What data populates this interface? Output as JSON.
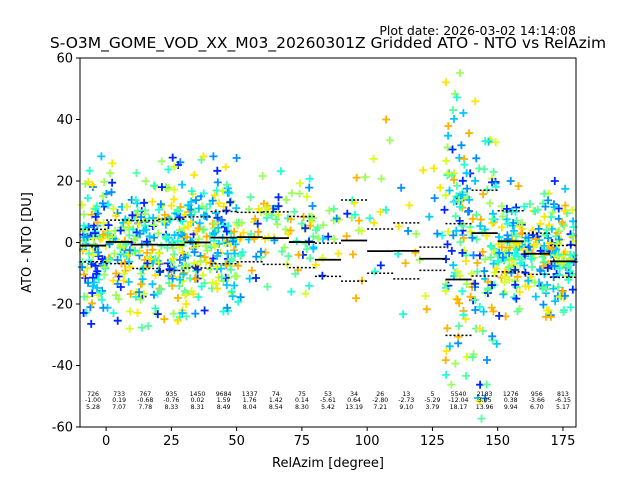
{
  "plot_date": "Plot date: 2026-03-02 14:14:08",
  "colors": {
    "palette": [
      "#0027ff",
      "#0090ff",
      "#00c8ff",
      "#1fffd6",
      "#55ff9f",
      "#9bff5a",
      "#d5ff21",
      "#ffe600",
      "#ffb300"
    ],
    "mean_line": "#000000",
    "std_line": "#000000"
  },
  "chart_data": {
    "type": "scatter",
    "title": "S-O3M_GOME_VOD_XX_M03_20260301Z Gridded ATO - NTO vs RelAzim",
    "xlabel": "RelAzim [degree]",
    "ylabel": "ATO - NTO [DU]",
    "xlim": [
      -10,
      180
    ],
    "ylim": [
      -60,
      60
    ],
    "xticks": [
      0,
      25,
      50,
      75,
      100,
      125,
      150,
      175
    ],
    "yticks": [
      -60,
      -40,
      -20,
      0,
      20,
      40,
      60
    ],
    "grid": false,
    "marker": "+",
    "point_clusters": [
      {
        "xmin": -10,
        "xmax": 52,
        "ymin": -28,
        "ymax": 28,
        "density": "high"
      },
      {
        "xmin": 52,
        "xmax": 80,
        "ymin": -20,
        "ymax": 26,
        "density": "medium"
      },
      {
        "xmin": 80,
        "xmax": 130,
        "ymin": -28,
        "ymax": 40,
        "density": "low"
      },
      {
        "xmin": 130,
        "xmax": 150,
        "ymin": -60,
        "ymax": 57,
        "density": "high"
      },
      {
        "xmin": 150,
        "xmax": 180,
        "ymin": -25,
        "ymax": 20,
        "density": "high"
      }
    ],
    "bins": [
      {
        "x_from": -10,
        "x_to": 0,
        "label_x": -5,
        "count": "726",
        "mean": "-1.00",
        "std": "5.28"
      },
      {
        "x_from": 0,
        "x_to": 10,
        "label_x": 5,
        "count": "733",
        "mean": "0.19",
        "std": "7.07"
      },
      {
        "x_from": 10,
        "x_to": 20,
        "label_x": 15,
        "count": "767",
        "mean": "-0.68",
        "std": "7.78"
      },
      {
        "x_from": 20,
        "x_to": 30,
        "label_x": 25,
        "count": "935",
        "mean": "-0.76",
        "std": "8.33"
      },
      {
        "x_from": 30,
        "x_to": 40,
        "label_x": 35,
        "count": "1450",
        "mean": "0.02",
        "std": "8.31"
      },
      {
        "x_from": 40,
        "x_to": 50,
        "label_x": 45,
        "count": "9684",
        "mean": "1.59",
        "std": "8.49"
      },
      {
        "x_from": 50,
        "x_to": 60,
        "label_x": 55,
        "count": "1337",
        "mean": "1.76",
        "std": "8.04"
      },
      {
        "x_from": 60,
        "x_to": 70,
        "label_x": 65,
        "count": "74",
        "mean": "1.42",
        "std": "8.54"
      },
      {
        "x_from": 70,
        "x_to": 80,
        "label_x": 75,
        "count": "75",
        "mean": "0.14",
        "std": "8.30"
      },
      {
        "x_from": 80,
        "x_to": 90,
        "label_x": 85,
        "count": "53",
        "mean": "-5.61",
        "std": "5.42"
      },
      {
        "x_from": 90,
        "x_to": 100,
        "label_x": 95,
        "count": "34",
        "mean": "0.64",
        "std": "13.19"
      },
      {
        "x_from": 100,
        "x_to": 110,
        "label_x": 105,
        "count": "26",
        "mean": "-2.80",
        "std": "7.21"
      },
      {
        "x_from": 110,
        "x_to": 120,
        "label_x": 115,
        "count": "13",
        "mean": "-2.73",
        "std": "9.10"
      },
      {
        "x_from": 120,
        "x_to": 130,
        "label_x": 125,
        "count": "5",
        "mean": "-5.29",
        "std": "3.79"
      },
      {
        "x_from": 130,
        "x_to": 140,
        "label_x": 135,
        "count": "5540",
        "mean": "-12.04",
        "std": "18.17"
      },
      {
        "x_from": 140,
        "x_to": 150,
        "label_x": 145,
        "count": "2183",
        "mean": "3.05",
        "std": "13.96"
      },
      {
        "x_from": 150,
        "x_to": 160,
        "label_x": 155,
        "count": "1276",
        "mean": "0.38",
        "std": "9.94"
      },
      {
        "x_from": 160,
        "x_to": 170,
        "label_x": 165,
        "count": "956",
        "mean": "-3.66",
        "std": "6.70"
      },
      {
        "x_from": 170,
        "x_to": 180,
        "label_x": 175,
        "count": "813",
        "mean": "-6.15",
        "std": "5.17"
      }
    ]
  }
}
